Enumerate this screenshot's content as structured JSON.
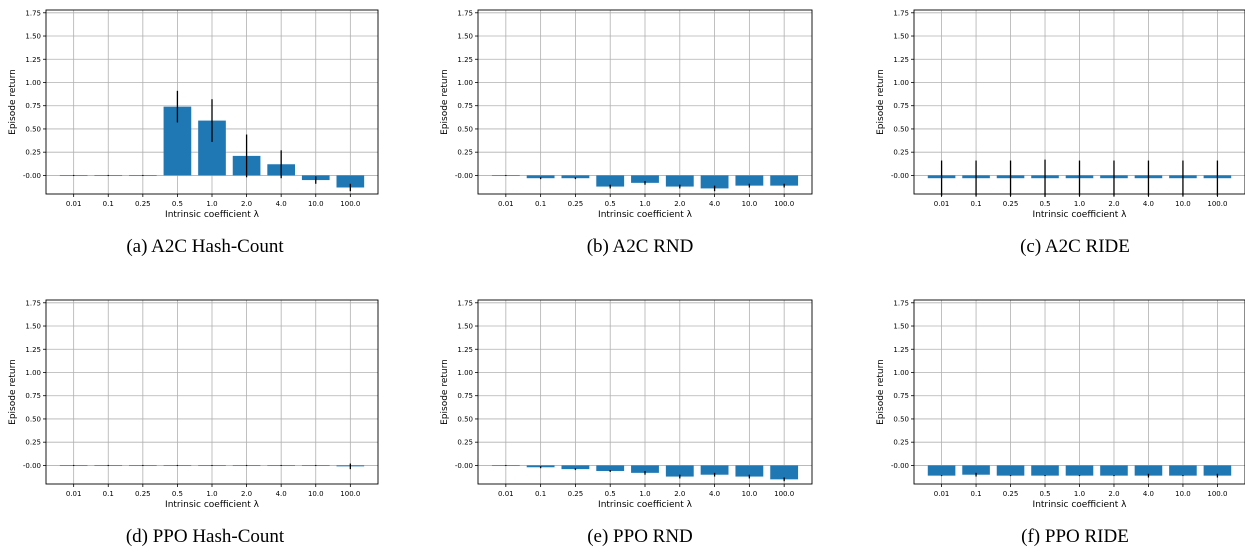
{
  "figure": {
    "captions": [
      "(a) A2C Hash-Count",
      "(b) A2C RND",
      "(c) A2C RIDE",
      "(d) PPO Hash-Count",
      "(e) PPO RND",
      "(f) PPO RIDE"
    ]
  },
  "colors": {
    "bar": "#1f77b4",
    "errorbar": "#000000",
    "grid": "#b0b0b0"
  },
  "chart_data": [
    {
      "type": "bar",
      "caption": "(a) A2C Hash-Count",
      "xlabel": "Intrinsic coefficient λ",
      "ylabel": "Episode return",
      "categories": [
        "0.01",
        "0.1",
        "0.25",
        "0.5",
        "1.0",
        "2.0",
        "4.0",
        "10.0",
        "100.0"
      ],
      "values": [
        0.0,
        0.0,
        0.0,
        0.74,
        0.59,
        0.21,
        0.12,
        -0.05,
        -0.13
      ],
      "errors": [
        0.005,
        0.005,
        0.005,
        0.17,
        0.23,
        0.23,
        0.15,
        0.04,
        0.04
      ],
      "ylim": [
        -0.2,
        1.78
      ],
      "yticks": [
        "-0.00",
        "0.25",
        "0.50",
        "0.75",
        "1.00",
        "1.25",
        "1.50",
        "1.75"
      ],
      "grid": true
    },
    {
      "type": "bar",
      "caption": "(b) A2C RND",
      "xlabel": "Intrinsic coefficient λ",
      "ylabel": "Episode return",
      "categories": [
        "0.01",
        "0.1",
        "0.25",
        "0.5",
        "1.0",
        "2.0",
        "4.0",
        "10.0",
        "100.0"
      ],
      "values": [
        0.0,
        -0.03,
        -0.03,
        -0.12,
        -0.08,
        -0.12,
        -0.14,
        -0.11,
        -0.11
      ],
      "errors": [
        0.005,
        0.01,
        0.01,
        0.02,
        0.02,
        0.02,
        0.03,
        0.02,
        0.02
      ],
      "ylim": [
        -0.2,
        1.78
      ],
      "yticks": [
        "-0.00",
        "0.25",
        "0.50",
        "0.75",
        "1.00",
        "1.25",
        "1.50",
        "1.75"
      ],
      "grid": true
    },
    {
      "type": "bar",
      "caption": "(c) A2C RIDE",
      "xlabel": "Intrinsic coefficient λ",
      "ylabel": "Episode return",
      "categories": [
        "0.01",
        "0.1",
        "0.25",
        "0.5",
        "1.0",
        "2.0",
        "4.0",
        "10.0",
        "100.0"
      ],
      "values": [
        -0.03,
        -0.03,
        -0.03,
        -0.03,
        -0.03,
        -0.03,
        -0.03,
        -0.03,
        -0.03
      ],
      "errors": [
        0.19,
        0.19,
        0.19,
        0.2,
        0.19,
        0.19,
        0.19,
        0.19,
        0.19
      ],
      "ylim": [
        -0.2,
        1.78
      ],
      "yticks": [
        "-0.00",
        "0.25",
        "0.50",
        "0.75",
        "1.00",
        "1.25",
        "1.50",
        "1.75"
      ],
      "grid": true
    },
    {
      "type": "bar",
      "caption": "(d) PPO Hash-Count",
      "xlabel": "Intrinsic coefficient λ",
      "ylabel": "Episode return",
      "categories": [
        "0.01",
        "0.1",
        "0.25",
        "0.5",
        "1.0",
        "2.0",
        "4.0",
        "10.0",
        "100.0"
      ],
      "values": [
        0.0,
        0.0,
        0.0,
        0.0,
        0.0,
        0.0,
        0.0,
        0.0,
        -0.01
      ],
      "errors": [
        0.005,
        0.005,
        0.005,
        0.005,
        0.005,
        0.005,
        0.005,
        0.005,
        0.03
      ],
      "ylim": [
        -0.2,
        1.78
      ],
      "yticks": [
        "-0.00",
        "0.25",
        "0.50",
        "0.75",
        "1.00",
        "1.25",
        "1.50",
        "1.75"
      ],
      "grid": true
    },
    {
      "type": "bar",
      "caption": "(e) PPO RND",
      "xlabel": "Intrinsic coefficient λ",
      "ylabel": "Episode return",
      "categories": [
        "0.01",
        "0.1",
        "0.25",
        "0.5",
        "1.0",
        "2.0",
        "4.0",
        "10.0",
        "100.0"
      ],
      "values": [
        0.0,
        -0.02,
        -0.04,
        -0.06,
        -0.08,
        -0.12,
        -0.1,
        -0.12,
        -0.15
      ],
      "errors": [
        0.005,
        0.01,
        0.01,
        0.01,
        0.02,
        0.02,
        0.02,
        0.02,
        0.02
      ],
      "ylim": [
        -0.2,
        1.78
      ],
      "yticks": [
        "-0.00",
        "0.25",
        "0.50",
        "0.75",
        "1.00",
        "1.25",
        "1.50",
        "1.75"
      ],
      "grid": true
    },
    {
      "type": "bar",
      "caption": "(f) PPO RIDE",
      "xlabel": "Intrinsic coefficient λ",
      "ylabel": "Episode return",
      "categories": [
        "0.01",
        "0.1",
        "0.25",
        "0.5",
        "1.0",
        "2.0",
        "4.0",
        "10.0",
        "100.0"
      ],
      "values": [
        -0.11,
        -0.1,
        -0.11,
        -0.11,
        -0.11,
        -0.11,
        -0.11,
        -0.11,
        -0.11
      ],
      "errors": [
        0.005,
        0.02,
        0.005,
        0.005,
        0.005,
        0.005,
        0.02,
        0.005,
        0.02
      ],
      "ylim": [
        -0.2,
        1.78
      ],
      "yticks": [
        "-0.00",
        "0.25",
        "0.50",
        "0.75",
        "1.00",
        "1.25",
        "1.50",
        "1.75"
      ],
      "grid": true
    }
  ]
}
